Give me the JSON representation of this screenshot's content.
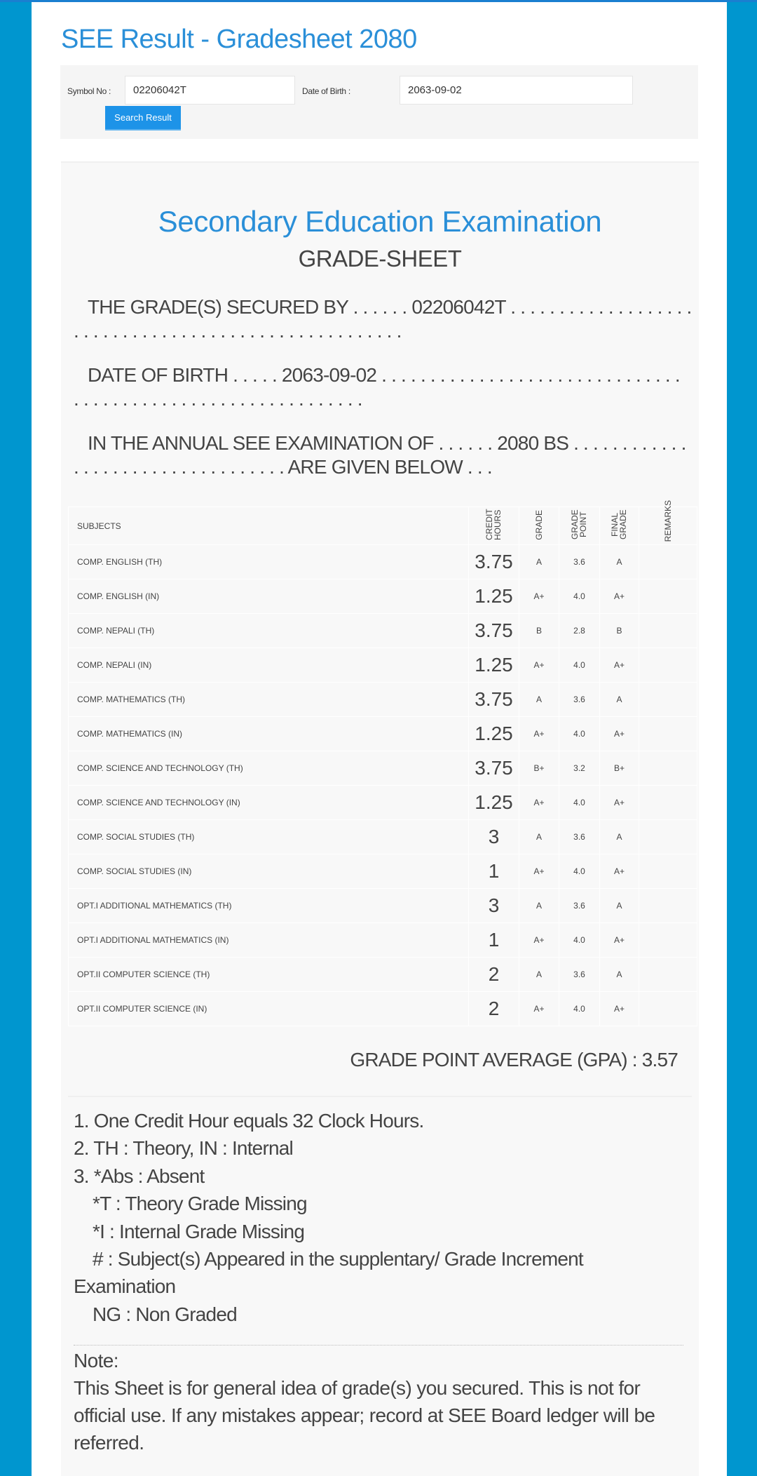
{
  "header": {
    "title": "SEE Result - Gradesheet 2080"
  },
  "form": {
    "symbol_label": "Symbol No :",
    "symbol_value": "02206042T",
    "dob_label": "Date of Birth :",
    "dob_value": "2063-09-02",
    "search_label": "Search Result"
  },
  "sheet": {
    "heading": "Secondary Education Examination",
    "subheading": "GRADE-SHEET",
    "secured_line1": "THE GRADE(S) SECURED BY . . . . . . 02206042T . . . . . . . . . . . . . . . . . . .",
    "secured_line2": ". . . . . . . . . . . . . . . . . . . . . . . . . . . . . . . . . .",
    "dob_line1": "DATE OF BIRTH . . . . . 2063-09-02 . . . . . . . . . . . . . . . . . . . . . . . . . . . . . . .",
    "dob_line2": ". . . . . . . . . . . . . . . . . . . . . . . . . . . . . .",
    "exam_line1": "IN THE ANNUAL SEE EXAMINATION OF . . . . . . 2080 BS . . . . . . . . . . . .",
    "exam_line2": ". . . . . . . . . . . . . . . . . . . . . . ARE GIVEN BELOW . . ."
  },
  "table": {
    "headers": {
      "subjects": "SUBJECTS",
      "credit": "CREDIT HOURS",
      "grade": "GRADE",
      "point": "GRADE POINT",
      "final": "FINAL GRADE",
      "remarks": "REMARKS"
    },
    "rows": [
      {
        "subject": "COMP. ENGLISH (TH)",
        "credit": "3.75",
        "grade": "A",
        "point": "3.6",
        "final": "A"
      },
      {
        "subject": "COMP. ENGLISH (IN)",
        "credit": "1.25",
        "grade": "A+",
        "point": "4.0",
        "final": "A+"
      },
      {
        "subject": "COMP. NEPALI (TH)",
        "credit": "3.75",
        "grade": "B",
        "point": "2.8",
        "final": "B"
      },
      {
        "subject": "COMP. NEPALI (IN)",
        "credit": "1.25",
        "grade": "A+",
        "point": "4.0",
        "final": "A+"
      },
      {
        "subject": "COMP. MATHEMATICS (TH)",
        "credit": "3.75",
        "grade": "A",
        "point": "3.6",
        "final": "A"
      },
      {
        "subject": "COMP. MATHEMATICS (IN)",
        "credit": "1.25",
        "grade": "A+",
        "point": "4.0",
        "final": "A+"
      },
      {
        "subject": "COMP. SCIENCE AND TECHNOLOGY (TH)",
        "credit": "3.75",
        "grade": "B+",
        "point": "3.2",
        "final": "B+"
      },
      {
        "subject": "COMP. SCIENCE AND TECHNOLOGY (IN)",
        "credit": "1.25",
        "grade": "A+",
        "point": "4.0",
        "final": "A+"
      },
      {
        "subject": "COMP. SOCIAL STUDIES (TH)",
        "credit": "3",
        "grade": "A",
        "point": "3.6",
        "final": "A"
      },
      {
        "subject": "COMP. SOCIAL STUDIES (IN)",
        "credit": "1",
        "grade": "A+",
        "point": "4.0",
        "final": "A+"
      },
      {
        "subject": "OPT.I ADDITIONAL MATHEMATICS (TH)",
        "credit": "3",
        "grade": "A",
        "point": "3.6",
        "final": "A"
      },
      {
        "subject": "OPT.I ADDITIONAL MATHEMATICS (IN)",
        "credit": "1",
        "grade": "A+",
        "point": "4.0",
        "final": "A+"
      },
      {
        "subject": "OPT.II COMPUTER SCIENCE (TH)",
        "credit": "2",
        "grade": "A",
        "point": "3.6",
        "final": "A"
      },
      {
        "subject": "OPT.II COMPUTER SCIENCE (IN)",
        "credit": "2",
        "grade": "A+",
        "point": "4.0",
        "final": "A+"
      }
    ]
  },
  "gpa": "GRADE POINT AVERAGE (GPA) : 3.57",
  "notes": [
    "1. One Credit Hour equals 32 Clock Hours.",
    "2. TH : Theory, IN : Internal",
    "3. *Abs : Absent",
    "*T : Theory Grade Missing",
    "*I : Internal Grade Missing",
    "# : Subject(s) Appeared in the supplentary/ Grade Increment",
    "Examination",
    "NG : Non Graded"
  ],
  "note": {
    "title": "Note:",
    "text": "This Sheet is for general idea of grade(s) you secured. This is not for official use. If any mistakes appear; record at SEE Board ledger will be referred."
  }
}
